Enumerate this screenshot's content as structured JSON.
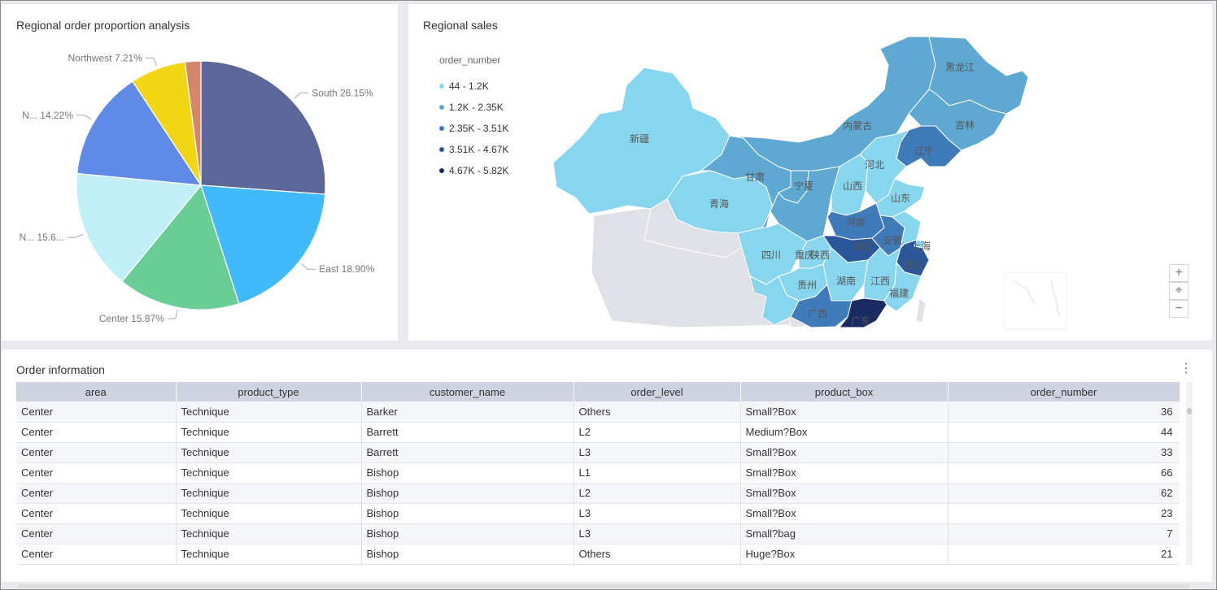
{
  "pie": {
    "title": "Regional order proportion analysis",
    "chart_data": {
      "type": "pie",
      "title": "Regional order proportion analysis",
      "slices": [
        {
          "label": "South",
          "value": 26.15,
          "display": "South 26.15%",
          "color": "#5b6699"
        },
        {
          "label": "East",
          "value": 18.9,
          "display": "East 18.90%",
          "color": "#40bafd"
        },
        {
          "label": "Center",
          "value": 15.87,
          "display": "Center 15.87%",
          "color": "#6bcd96"
        },
        {
          "label": "N...",
          "value": 15.6,
          "display": "N... 15.6...",
          "color": "#c2eef5"
        },
        {
          "label": "N...",
          "value": 14.22,
          "display": "N... 14.22%",
          "color": "#5f8ae6"
        },
        {
          "label": "Northwest",
          "value": 7.21,
          "display": "Northwest 7.21%",
          "color": "#f2d615"
        },
        {
          "label": "",
          "value": 2.05,
          "display": "",
          "color": "#d4876c"
        }
      ]
    }
  },
  "map": {
    "title": "Regional sales",
    "legend": {
      "title": "order_number",
      "items": [
        {
          "label": "44 - 1.2K",
          "color": "#87d6ee"
        },
        {
          "label": "1.2K - 2.35K",
          "color": "#5ea8d2"
        },
        {
          "label": "2.35K - 3.51K",
          "color": "#3f7bb8"
        },
        {
          "label": "3.51K - 4.67K",
          "color": "#2b569a"
        },
        {
          "label": "4.67K - 5.82K",
          "color": "#1a2b63"
        }
      ]
    },
    "provinces": [
      "黑龙江",
      "吉林",
      "辽宁",
      "内蒙古",
      "新疆",
      "甘肃",
      "宁夏",
      "河北",
      "山西",
      "山东",
      "青海",
      "河南",
      "陕西",
      "湖北",
      "安徽",
      "上海",
      "四川",
      "重庆",
      "浙江",
      "贵州",
      "湖南",
      "江西",
      "福建",
      "广西",
      "广东"
    ],
    "controls": {
      "zoom_in": "+",
      "locate": "⌖",
      "zoom_out": "−"
    }
  },
  "table": {
    "title": "Order information",
    "menu_icon": "⋮",
    "columns": [
      "area",
      "product_type",
      "customer_name",
      "order_level",
      "product_box",
      "order_number"
    ],
    "rows": [
      [
        "Center",
        "Technique",
        "Barker",
        "Others",
        "Small?Box",
        "36"
      ],
      [
        "Center",
        "Technique",
        "Barrett",
        "L2",
        "Medium?Box",
        "44"
      ],
      [
        "Center",
        "Technique",
        "Barrett",
        "L3",
        "Small?Box",
        "33"
      ],
      [
        "Center",
        "Technique",
        "Bishop",
        "L1",
        "Small?Box",
        "66"
      ],
      [
        "Center",
        "Technique",
        "Bishop",
        "L2",
        "Small?Box",
        "62"
      ],
      [
        "Center",
        "Technique",
        "Bishop",
        "L3",
        "Small?Box",
        "23"
      ],
      [
        "Center",
        "Technique",
        "Bishop",
        "L3",
        "Small?bag",
        "7"
      ],
      [
        "Center",
        "Technique",
        "Bishop",
        "Others",
        "Huge?Box",
        "21"
      ]
    ]
  }
}
